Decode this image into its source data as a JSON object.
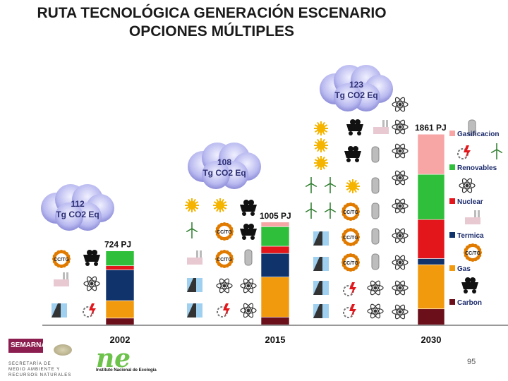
{
  "title_line1": "RUTA TECNOLÓGICA GENERACIÓN ESCENARIO",
  "title_line2": "OPCIONES MÚLTIPLES",
  "chart_data": {
    "type": "bar",
    "stacked": true,
    "categories": [
      "2002",
      "2015",
      "2030"
    ],
    "totals_labels": [
      "724 PJ",
      "1005 PJ",
      "1861 PJ"
    ],
    "totals": [
      724,
      1005,
      1861
    ],
    "series": [
      {
        "name": "Carbon",
        "color": "#6b0f1a",
        "values": [
          70,
          80,
          160
        ]
      },
      {
        "name": "Gas",
        "color": "#f29a0e",
        "values": [
          170,
          390,
          430
        ]
      },
      {
        "name": "Termica",
        "color": "#10336b",
        "values": [
          300,
          230,
          60
        ]
      },
      {
        "name": "Nuclear",
        "color": "#e3161b",
        "values": [
          40,
          70,
          380
        ]
      },
      {
        "name": "Renovables",
        "color": "#2fbf3a",
        "values": [
          144,
          190,
          440
        ]
      },
      {
        "name": "Gasificacion",
        "color": "#f7a5a5",
        "values": [
          0,
          45,
          391
        ]
      }
    ],
    "emissions": [
      "112",
      "108",
      "123"
    ],
    "emissions_unit": "Tg CO2 Eq",
    "legend_position": "right",
    "grid": false
  },
  "page_number": "95",
  "footer": {
    "agency_short": "SEMARNAT",
    "agency_lines": [
      "SECRETARÍA DE",
      "MEDIO AMBIENTE Y",
      "RECURSOS NATURALES"
    ],
    "ine_mark": "ne",
    "ine_caption": "Instituto Nacional de Ecología"
  },
  "icons": {
    "ccgt_label": "CC/TG",
    "colors": {
      "sun": "#f5b400",
      "ccgt": "#e07b00",
      "coal": "#111111",
      "flash": "#e3161b",
      "atom": "#333333"
    }
  }
}
